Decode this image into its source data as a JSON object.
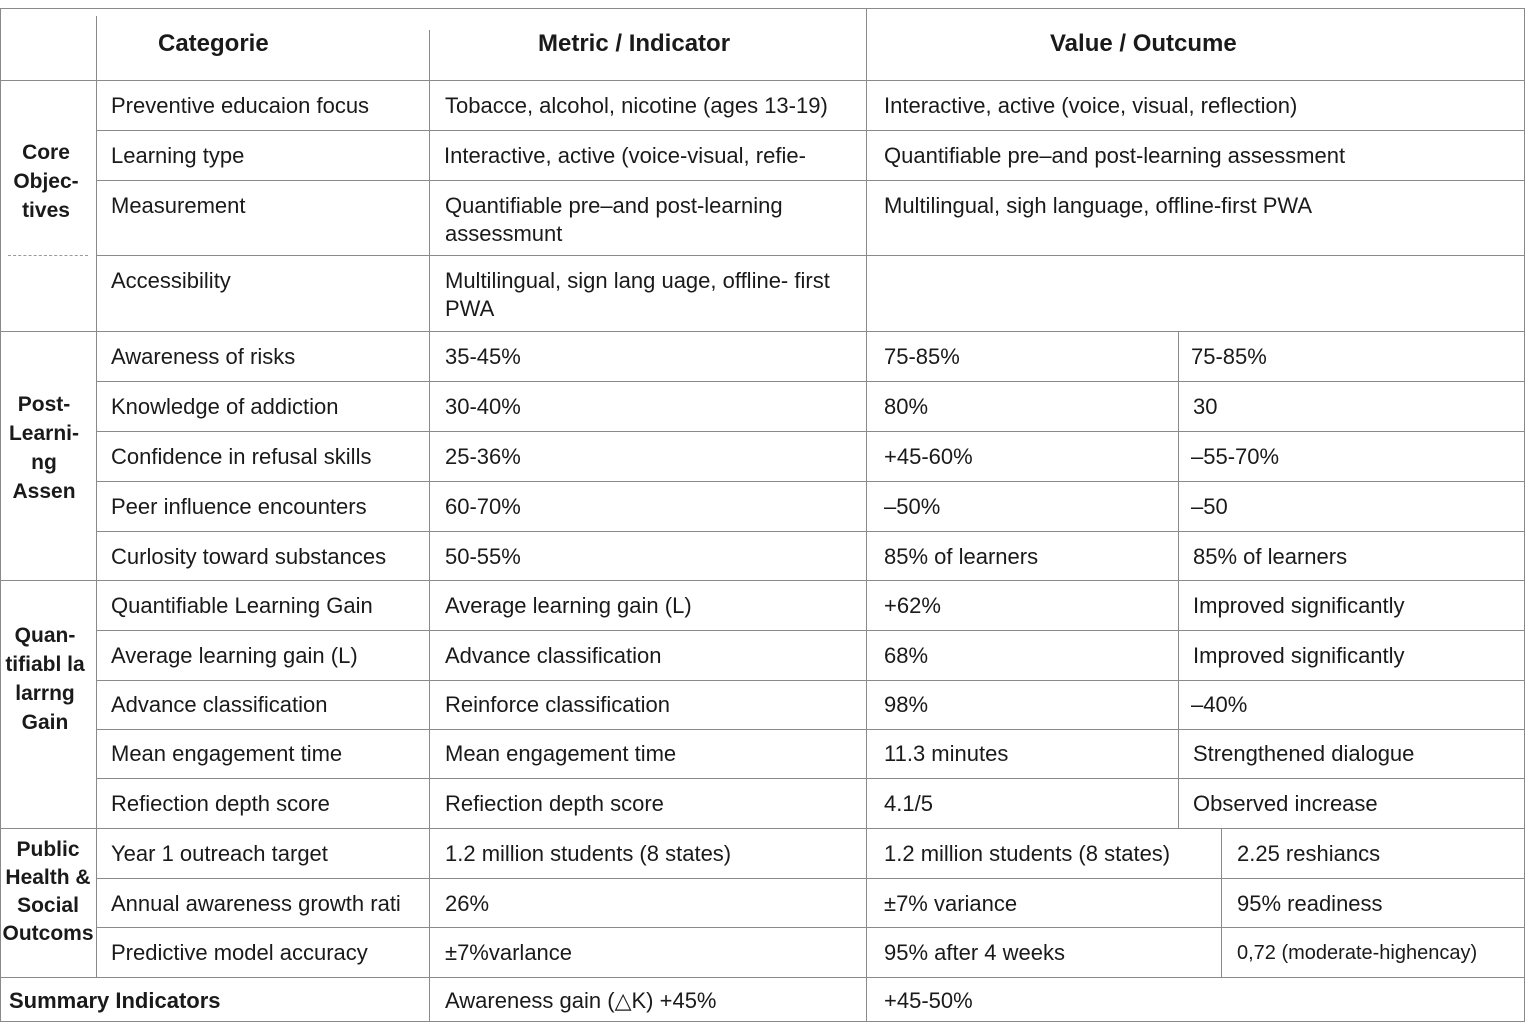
{
  "header": {
    "category": "Categorie",
    "metric": "Metric / Indicator",
    "value": "Value / Outcume"
  },
  "core": {
    "label": "Core Objec- tives",
    "rows": [
      {
        "a": "Preventive educaion focus",
        "b": "Tobacce, alcohol, nicotine (ages 13-19)",
        "c": "Interactive, active (voice, visual, reflection)"
      },
      {
        "a": "Learning type",
        "b": "Interactive, active (voice-visual, refie-",
        "c": "Quantifiable pre–and post-learning assessment"
      },
      {
        "a": "Measurement",
        "b": "Quantifiable pre–and post-learning assessmunt",
        "c": "Multilingual, sigh language, offline-first PWA"
      },
      {
        "a": "Accessibility",
        "b": "Multilingual, sign lang uage, offline- first PWA",
        "c": ""
      }
    ]
  },
  "post": {
    "label": "Post- Learni- ng Assen",
    "rows": [
      {
        "a": "Awareness of risks",
        "b": "35-45%",
        "c": "75-85%",
        "d": "75-85%"
      },
      {
        "a": "Knowledge of addiction",
        "b": "30-40%",
        "c": "80%",
        "d": "30"
      },
      {
        "a": "Confidence in refusal skills",
        "b": "25-36%",
        "c": "+45-60%",
        "d": "–55-70%"
      },
      {
        "a": "Peer influence encounters",
        "b": "60-70%",
        "c": "–50%",
        "d": "–50"
      },
      {
        "a": "Curlosity toward substances",
        "b": "50-55%",
        "c": "85% of learners",
        "d": "85% of learners"
      }
    ]
  },
  "gain": {
    "label": "Quan- tifiabl la larrng Gain",
    "rows": [
      {
        "a": "Quantifiable Learning Gain",
        "b": "Average learning gain (L)",
        "c": "+62%",
        "d": "Improved significantly"
      },
      {
        "a": "Average learning gain (L)",
        "b": "Advance classification",
        "c": "68%",
        "d": "Improved significantly"
      },
      {
        "a": "Advance classification",
        "b": "Reinforce classification",
        "c": "98%",
        "d": "–40%"
      },
      {
        "a": "Mean engagement time",
        "b": "Mean engagement time",
        "c": "11.3 minutes",
        "d": "Strengthened dialogue"
      },
      {
        "a": "Refiection depth score",
        "b": "Refiection depth score",
        "c": "4.1/5",
        "d": "Observed increase"
      }
    ]
  },
  "public": {
    "label": "Public Health & Social Outcoms",
    "rows": [
      {
        "a": "Year 1 outreach target",
        "b": "1.2 million students (8 states)",
        "c": "1.2 million students (8 states)",
        "d": "2.25 reshiancs"
      },
      {
        "a": "Annual awareness growth rati",
        "b": "26%",
        "c": "±7% variance",
        "d": "95% readiness"
      },
      {
        "a": "Predictive model accuracy",
        "b": "±7%varlance",
        "c": "95% after 4 weeks",
        "d": "0,72 (moderate-highencay)"
      }
    ]
  },
  "summary": {
    "label": "Summary Indicators",
    "b": "Awareness gain (△K) +45%",
    "c": "+45-50%"
  }
}
